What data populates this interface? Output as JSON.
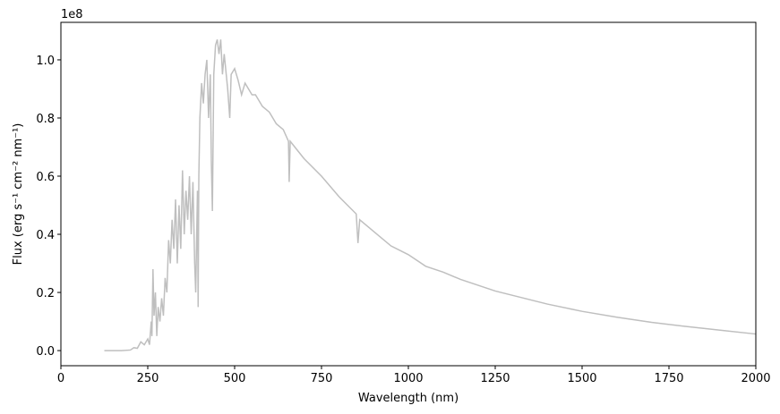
{
  "chart_data": {
    "type": "line",
    "x_label": "Wavelength (nm)",
    "y_label": "Flux (erg s⁻¹ cm⁻² nm⁻¹)",
    "y_offset_label": "1e8",
    "x": [
      125,
      150,
      175,
      200,
      210,
      220,
      230,
      240,
      250,
      255,
      260,
      262,
      265,
      268,
      272,
      276,
      280,
      285,
      290,
      295,
      300,
      305,
      310,
      315,
      320,
      325,
      330,
      335,
      340,
      345,
      350,
      355,
      360,
      365,
      370,
      375,
      380,
      385,
      388,
      393,
      395,
      397,
      400,
      405,
      410,
      415,
      420,
      425,
      430,
      433,
      436,
      440,
      445,
      450,
      455,
      460,
      465,
      470,
      480,
      486,
      490,
      500,
      510,
      520,
      530,
      540,
      550,
      560,
      580,
      600,
      620,
      640,
      655,
      657,
      660,
      680,
      700,
      750,
      800,
      850,
      855,
      860,
      900,
      950,
      1000,
      1050,
      1100,
      1150,
      1200,
      1250,
      1300,
      1400,
      1500,
      1600,
      1700,
      1800,
      1900,
      2000
    ],
    "series": [
      {
        "color": "#bfbfbf",
        "values": [
          0.0,
          0.0,
          0.0,
          0.002,
          0.01,
          0.008,
          0.03,
          0.02,
          0.04,
          0.02,
          0.1,
          0.05,
          0.28,
          0.12,
          0.2,
          0.05,
          0.15,
          0.1,
          0.18,
          0.12,
          0.25,
          0.2,
          0.38,
          0.3,
          0.45,
          0.35,
          0.52,
          0.3,
          0.5,
          0.35,
          0.62,
          0.4,
          0.55,
          0.45,
          0.6,
          0.4,
          0.58,
          0.3,
          0.2,
          0.55,
          0.15,
          0.6,
          0.8,
          0.92,
          0.85,
          0.95,
          1.0,
          0.8,
          0.95,
          0.65,
          0.48,
          0.95,
          1.05,
          1.07,
          1.02,
          1.07,
          0.95,
          1.02,
          0.9,
          0.8,
          0.95,
          0.97,
          0.93,
          0.88,
          0.92,
          0.9,
          0.88,
          0.88,
          0.84,
          0.82,
          0.78,
          0.76,
          0.72,
          0.58,
          0.72,
          0.69,
          0.66,
          0.6,
          0.53,
          0.47,
          0.37,
          0.45,
          0.41,
          0.36,
          0.33,
          0.29,
          0.27,
          0.245,
          0.225,
          0.205,
          0.19,
          0.16,
          0.135,
          0.115,
          0.097,
          0.083,
          0.07,
          0.057
        ]
      }
    ],
    "xlim": [
      0,
      2000
    ],
    "xticks": [
      0,
      250,
      500,
      750,
      1000,
      1250,
      1500,
      1750,
      2000
    ],
    "ylim": [
      -0.052,
      1.129
    ],
    "yticks": [
      {
        "value": 0,
        "label": "0.0"
      },
      0.2,
      0.4,
      0.6,
      0.8,
      {
        "value": 1,
        "label": "1.0"
      }
    ]
  }
}
